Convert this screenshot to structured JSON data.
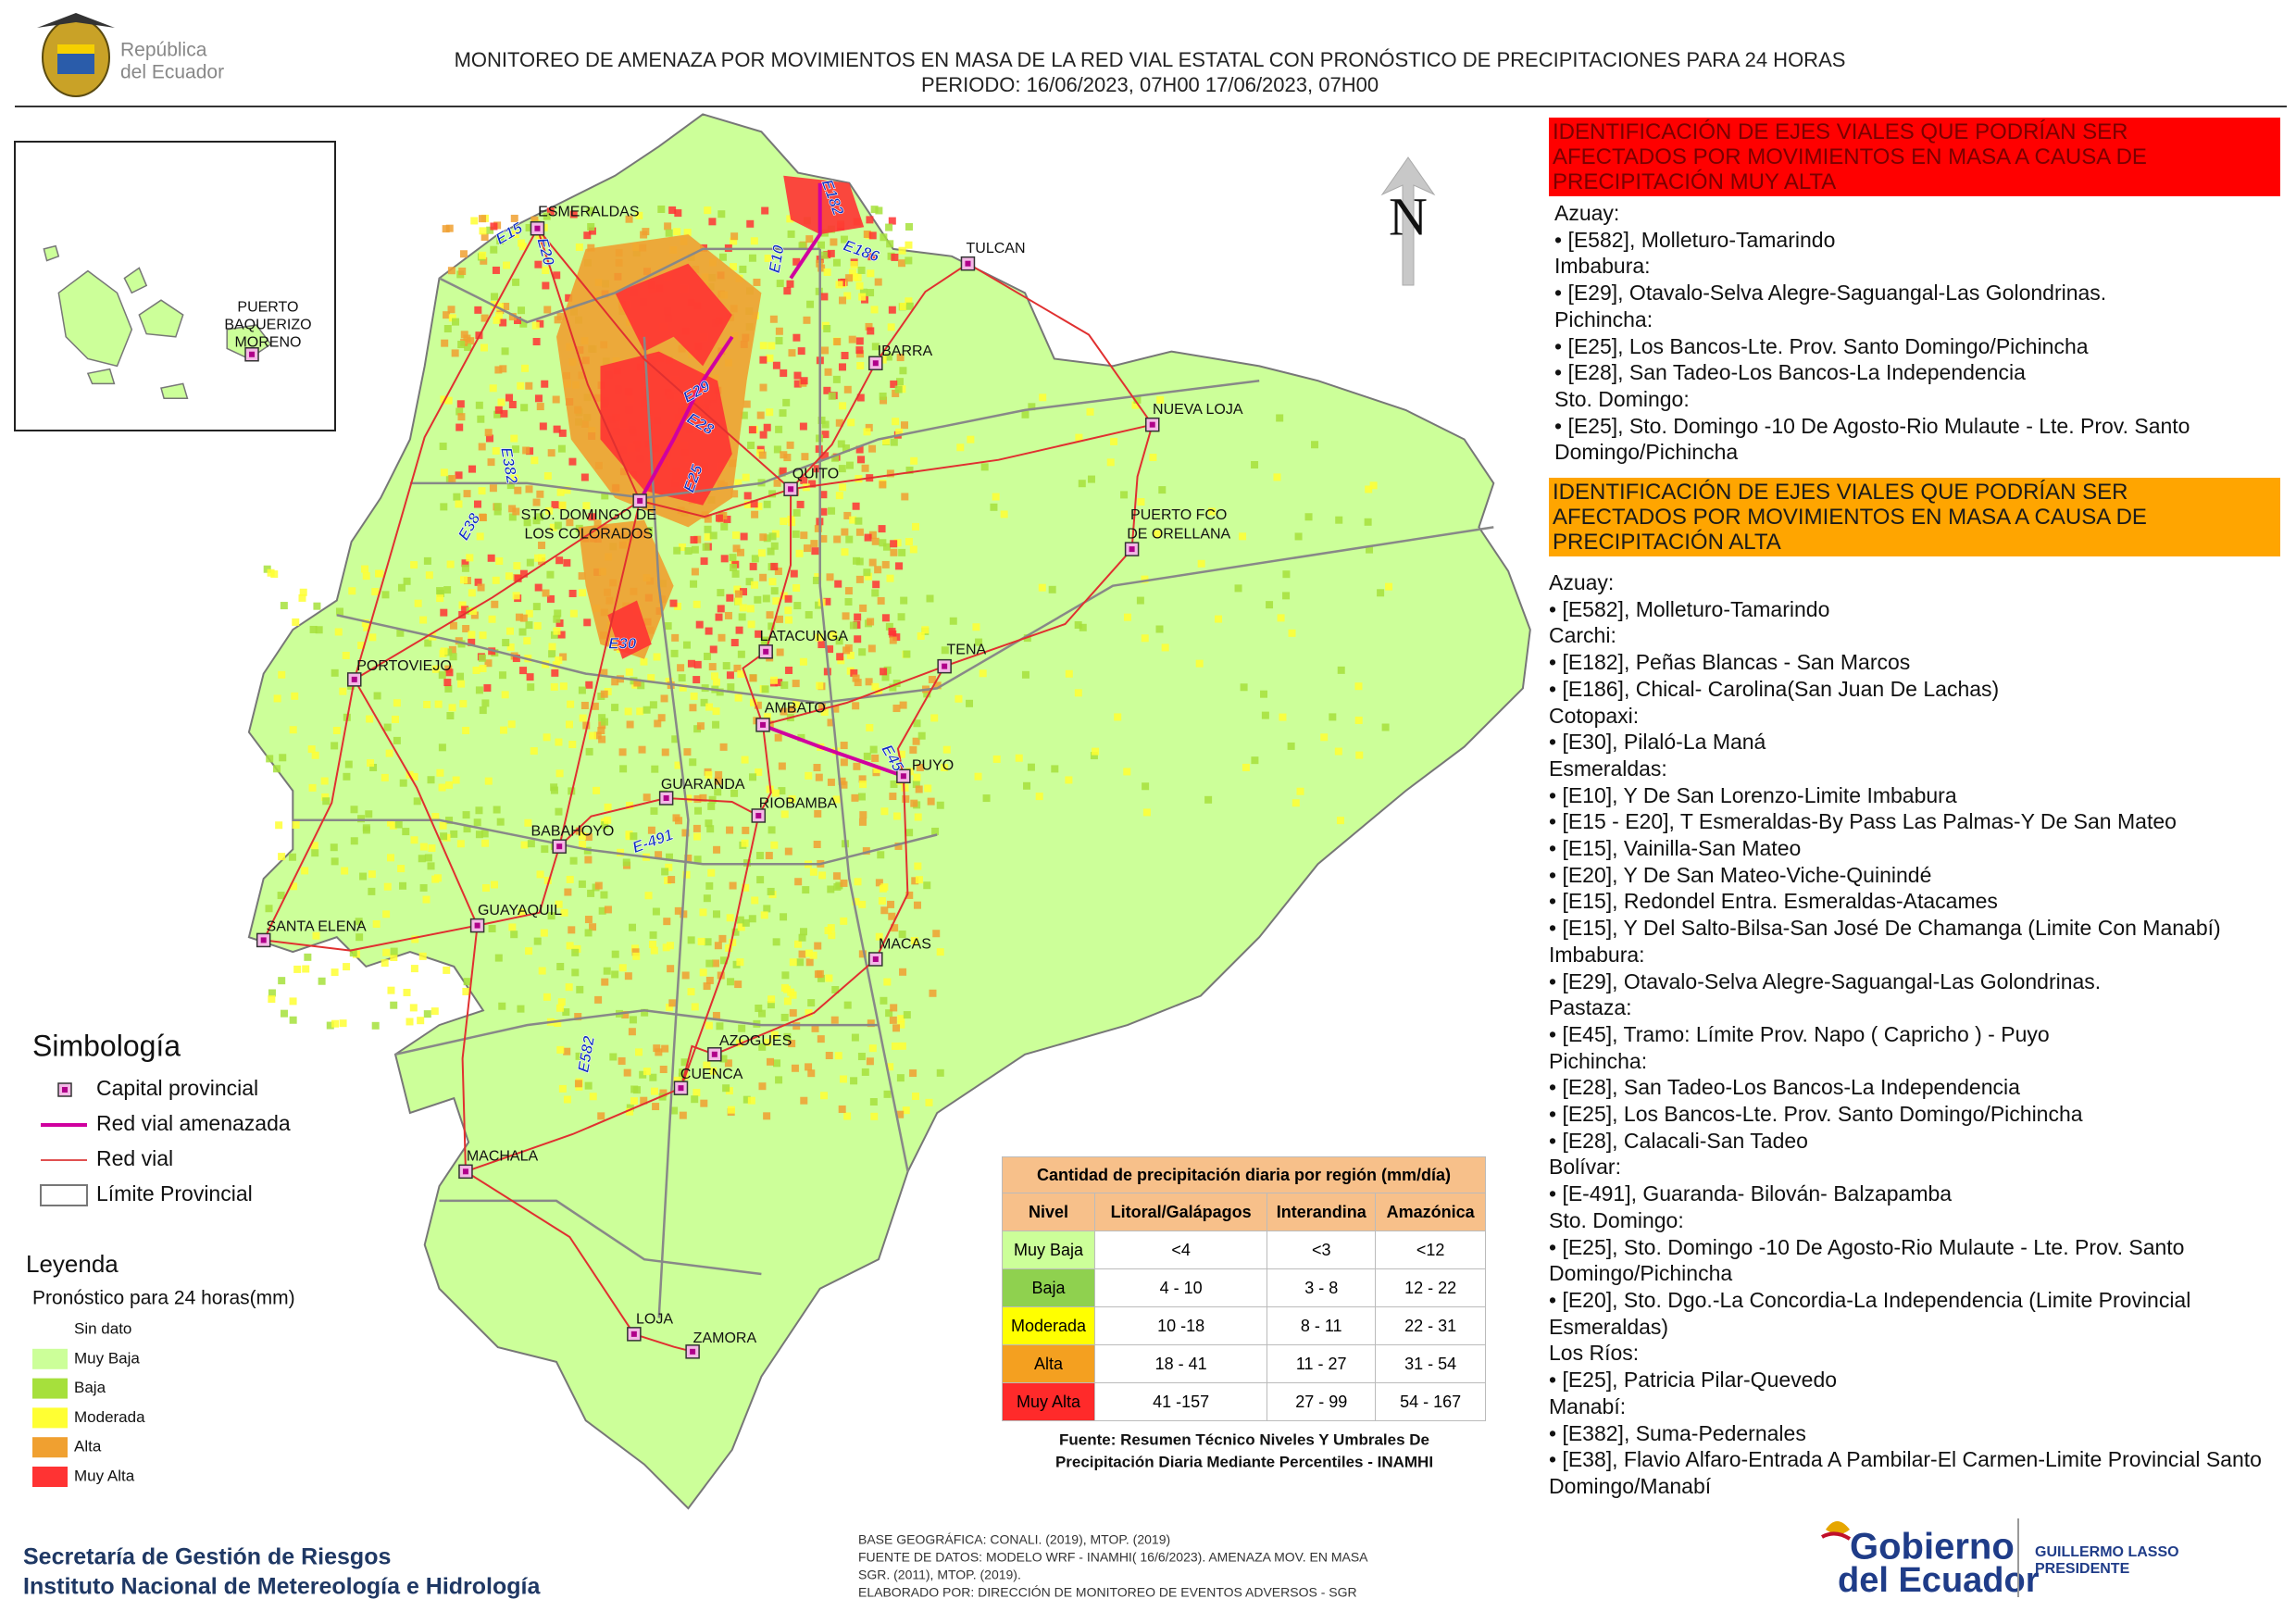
{
  "header": {
    "logo_text": [
      "República",
      "del Ecuador"
    ],
    "title": "MONITOREO DE AMENAZA POR MOVIMIENTOS EN MASA DE LA RED VIAL  ESTATAL  CON PRONÓSTICO  DE  PRECIPITACIONES PARA 24 HORAS",
    "period": "PERIODO: 16/06/2023, 07H00 17/06/2023, 07H00"
  },
  "map": {
    "north": "N",
    "inset_cities": [
      [
        "PUERTO",
        "BAQUERIZO",
        "MORENO"
      ]
    ],
    "cities": [
      [
        "ESMERALDAS"
      ],
      [
        "TULCAN"
      ],
      [
        "IBARRA"
      ],
      [
        "NUEVA LOJA"
      ],
      [
        "QUITO"
      ],
      [
        "STO. DOMINGO DE",
        "LOS COLORADOS"
      ],
      [
        "PUERTO FCO",
        "DE ORELLANA"
      ],
      [
        "LATACUNGA"
      ],
      [
        "TENA"
      ],
      [
        "PORTOVIEJO"
      ],
      [
        "AMBATO"
      ],
      [
        "PUYO"
      ],
      [
        "GUARANDA"
      ],
      [
        "RIOBAMBA"
      ],
      [
        "BABAHOYO"
      ],
      [
        "SANTA ELENA"
      ],
      [
        "GUAYAQUIL"
      ],
      [
        "MACAS"
      ],
      [
        "AZOGUES"
      ],
      [
        "CUENCA"
      ],
      [
        "MACHALA"
      ],
      [
        "LOJA"
      ],
      [
        "ZAMORA"
      ]
    ],
    "roads": [
      "E15",
      "E20",
      "E10",
      "E182",
      "E186",
      "E29",
      "E28",
      "E25",
      "E382",
      "E38",
      "E30",
      "E45",
      "E-491",
      "E582"
    ]
  },
  "symbology": {
    "title": "Simbología",
    "items": [
      "Capital provincial",
      "Red vial amenazada",
      "Red vial",
      "Límite Provincial"
    ]
  },
  "legend": {
    "title": "Leyenda",
    "subtitle": "Pronóstico para 24 horas(mm)",
    "items": [
      "Sin dato",
      "Muy Baja",
      "Baja",
      "Moderada",
      "Alta",
      "Muy Alta"
    ],
    "colors": [
      "#ffffff",
      "#ccff99",
      "#a6e03c",
      "#ffff33",
      "#f0a030",
      "#ff3333"
    ]
  },
  "table": {
    "title": "Cantidad de precipitación diaria por región (mm/día)",
    "headers": [
      "Nivel",
      "Litoral/Galápagos",
      "Interandina",
      "Amazónica"
    ],
    "rows": [
      [
        "Muy Baja",
        "<4",
        "<3",
        "<12"
      ],
      [
        "Baja",
        "4 - 10",
        "3 - 8",
        "12 - 22"
      ],
      [
        "Moderada",
        "10 -18",
        "8 - 11",
        "22 - 31"
      ],
      [
        "Alta",
        "18 - 41",
        "11 - 27",
        "31 - 54"
      ],
      [
        "Muy Alta",
        "41 -157",
        "27 - 99",
        "54 - 167"
      ]
    ],
    "row_colors": [
      "#ccff99",
      "#8fd14f",
      "#ffff00",
      "#f4a020",
      "#ff2a2a"
    ],
    "source": [
      "Fuente: Resumen Técnico Niveles Y Umbrales De",
      "Precipitación Diaria Mediante Percentiles - INAMHI"
    ]
  },
  "panel": {
    "very_high": {
      "heading": [
        "IDENTIFICACIÓN DE EJES VIALES QUE PODRÍAN SER",
        "AFECTADOS POR MOVIMIENTOS EN MASA A CAUSA DE",
        "PRECIPITACIÓN MUY ALTA"
      ],
      "groups": [
        {
          "province": "Azuay:",
          "roads": [
            "• [E582], Molleturo-Tamarindo"
          ]
        },
        {
          "province": "Imbabura:",
          "roads": [
            "• [E29], Otavalo-Selva Alegre-Saguangal-Las Golondrinas."
          ]
        },
        {
          "province": "Pichincha:",
          "roads": [
            "• [E25], Los Bancos-Lte. Prov. Santo Domingo/Pichincha",
            "• [E28], San Tadeo-Los Bancos-La Independencia"
          ]
        },
        {
          "province": "Sto. Domingo:",
          "roads": [
            "• [E25], Sto. Domingo -10 De Agosto-Rio Mulaute - Lte. Prov. Santo Domingo/Pichincha"
          ]
        }
      ]
    },
    "high": {
      "heading": [
        "IDENTIFICACIÓN DE EJES VIALES QUE PODRÍAN SER",
        "AFECTADOS POR MOVIMIENTOS EN MASA A CAUSA DE",
        "PRECIPITACIÓN  ALTA"
      ],
      "groups": [
        {
          "province": "Azuay:",
          "roads": [
            "• [E582], Molleturo-Tamarindo"
          ]
        },
        {
          "province": "Carchi:",
          "roads": [
            "• [E182], Peñas Blancas - San Marcos",
            "• [E186], Chical- Carolina(San Juan De Lachas)"
          ]
        },
        {
          "province": "Cotopaxi:",
          "roads": [
            "• [E30], Pilaló-La Maná"
          ]
        },
        {
          "province": "Esmeraldas:",
          "roads": [
            "• [E10], Y De San Lorenzo-Limite Imbabura",
            "• [E15 - E20], T Esmeraldas-By Pass Las Palmas-Y De San Mateo",
            "• [E15], Vainilla-San Mateo",
            "• [E20], Y De San Mateo-Viche-Quinindé",
            "• [E15], Redondel Entra. Esmeraldas-Atacames",
            "• [E15], Y Del Salto-Bilsa-San José De Chamanga (Limite Con Manabí)"
          ]
        },
        {
          "province": "Imbabura:",
          "roads": [
            "• [E29], Otavalo-Selva Alegre-Saguangal-Las Golondrinas."
          ]
        },
        {
          "province": "Pastaza:",
          "roads": [
            "• [E45], Tramo: Límite Prov. Napo ( Capricho ) - Puyo"
          ]
        },
        {
          "province": "Pichincha:",
          "roads": [
            "• [E28], San Tadeo-Los Bancos-La Independencia",
            "• [E25], Los Bancos-Lte. Prov. Santo Domingo/Pichincha",
            "• [E28], Calacali-San Tadeo"
          ]
        },
        {
          "province": "Bolívar:",
          "roads": [
            "• [E-491], Guaranda- Bilován- Balzapamba"
          ]
        },
        {
          "province": "Sto. Domingo:",
          "roads": [
            "• [E25], Sto. Domingo -10 De Agosto-Rio Mulaute - Lte. Prov. Santo Domingo/Pichincha",
            "• [E20], Sto. Dgo.-La Concordia-La Independencia (Limite Provincial Esmeraldas)"
          ]
        },
        {
          "province": "Los Ríos:",
          "roads": [
            "• [E25], Patricia Pilar-Quevedo"
          ]
        },
        {
          "province": "Manabí:",
          "roads": [
            "• [E382], Suma-Pedernales",
            "• [E38], Flavio Alfaro-Entrada A Pambilar-El Carmen-Limite Provincial Santo Domingo/Manabí"
          ]
        }
      ]
    }
  },
  "footer": {
    "organizations": [
      "Secretaría de Gestión de Riesgos",
      "Instituto Nacional de Metereología e Hidrología"
    ],
    "credits": [
      "BASE GEOGRÁFICA: CONALI. (2019), MTOP. (2019)",
      "FUENTE DE DATOS: MODELO WRF - INAMHI( 16/6/2023).  AMENAZA MOV. EN MASA",
      "SGR. (2011), MTOP. (2019).",
      "ELABORADO POR: DIRECCIÓN DE MONITOREO DE EVENTOS ADVERSOS - SGR"
    ],
    "government": [
      "Gobierno",
      "del Ecuador"
    ],
    "president": [
      "GUILLERMO LASSO",
      "PRESIDENTE"
    ]
  }
}
